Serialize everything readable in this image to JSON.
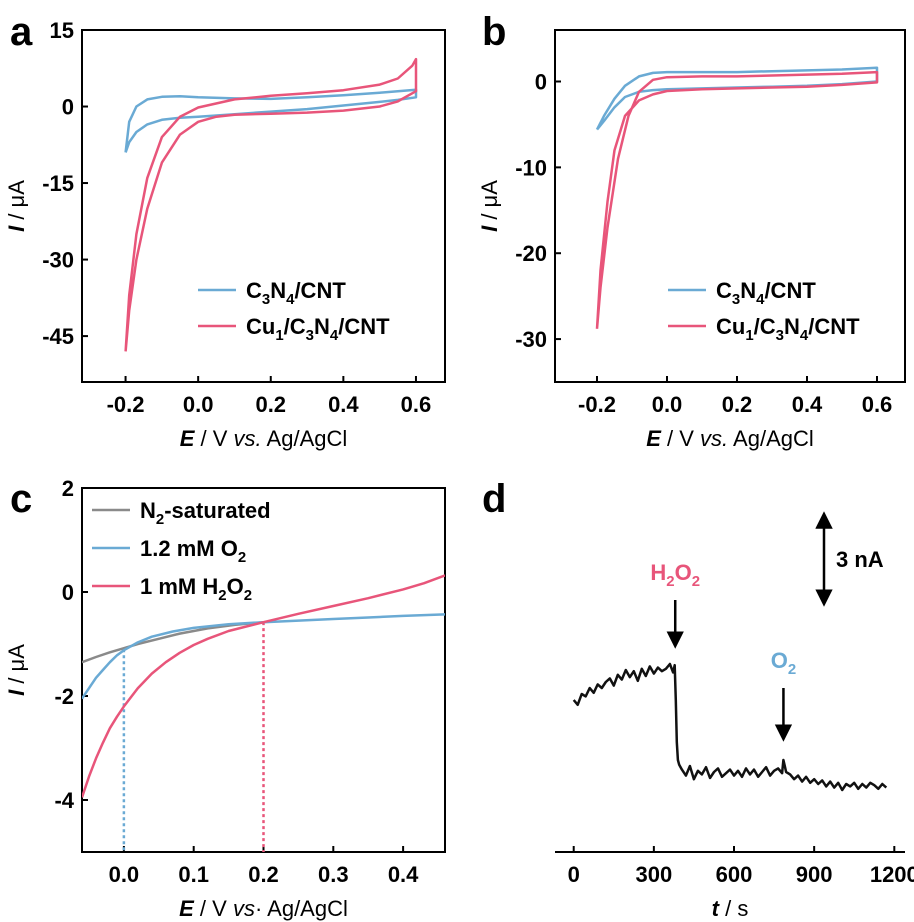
{
  "colors": {
    "blue": "#6aaad4",
    "pink": "#e8557a",
    "gray": "#8a8a8a",
    "black": "#111111",
    "axis": "#000000"
  },
  "panels": [
    {
      "letter": "a"
    },
    {
      "letter": "b"
    },
    {
      "letter": "c"
    },
    {
      "letter": "d"
    }
  ],
  "chart_data": [
    {
      "panel": "a",
      "type": "line",
      "xlabel": {
        "italic": "E",
        "sep": " / V ",
        "italic2": "vs.",
        "rest": " Ag/AgCl"
      },
      "ylabel": {
        "italic": "I",
        "rest": " / μA"
      },
      "xlim": [
        -0.32,
        0.68
      ],
      "ylim": [
        -54,
        15
      ],
      "xticks": [
        "-0.2",
        "0.0",
        "0.2",
        "0.4",
        "0.6"
      ],
      "xtick_values": [
        -0.2,
        0.0,
        0.2,
        0.4,
        0.6
      ],
      "yticks": [
        "15",
        "0",
        "-15",
        "-30",
        "-45"
      ],
      "ytick_values": [
        15,
        0,
        -15,
        -30,
        -45
      ],
      "legend": [
        {
          "label": "C3N4/CNT",
          "color_key": "blue"
        },
        {
          "label": "Cu1/C3N4/CNT",
          "color_key": "pink"
        }
      ],
      "series": [
        {
          "name": "C3N4/CNT",
          "color_key": "blue",
          "x": [
            -0.2,
            -0.19,
            -0.17,
            -0.14,
            -0.1,
            -0.05,
            0.0,
            0.1,
            0.2,
            0.3,
            0.4,
            0.5,
            0.55,
            0.6,
            0.6,
            0.55,
            0.5,
            0.4,
            0.3,
            0.2,
            0.1,
            0.0,
            -0.05,
            -0.1,
            -0.14,
            -0.17,
            -0.19,
            -0.2
          ],
          "y": [
            -9.0,
            -7.0,
            -5.0,
            -3.5,
            -2.6,
            -2.2,
            -2.0,
            -1.5,
            -1.0,
            -0.5,
            0.2,
            0.9,
            1.3,
            1.8,
            3.3,
            3.0,
            2.7,
            2.2,
            1.8,
            1.5,
            1.6,
            1.8,
            2.0,
            1.9,
            1.4,
            0.0,
            -3.0,
            -9.0
          ]
        },
        {
          "name": "Cu1/C3N4/CNT",
          "color_key": "pink",
          "x": [
            -0.2,
            -0.19,
            -0.17,
            -0.14,
            -0.1,
            -0.05,
            0.0,
            0.05,
            0.1,
            0.2,
            0.3,
            0.4,
            0.5,
            0.55,
            0.6,
            0.6,
            0.59,
            0.55,
            0.5,
            0.4,
            0.3,
            0.2,
            0.1,
            0.0,
            -0.05,
            -0.1,
            -0.14,
            -0.17,
            -0.19,
            -0.2
          ],
          "y": [
            -48.0,
            -40.0,
            -30.0,
            -20.0,
            -11.0,
            -5.5,
            -3.0,
            -2.0,
            -1.6,
            -1.4,
            -1.2,
            -0.8,
            0.0,
            1.0,
            3.0,
            9.3,
            8.0,
            5.5,
            4.3,
            3.2,
            2.6,
            2.1,
            1.4,
            -0.2,
            -2.0,
            -6.0,
            -14.0,
            -25.0,
            -37.0,
            -48.0
          ]
        }
      ]
    },
    {
      "panel": "b",
      "type": "line",
      "xlabel": {
        "italic": "E",
        "sep": " / V ",
        "italic2": "vs.",
        "rest": " Ag/AgCl"
      },
      "ylabel": {
        "italic": "I",
        "rest": " / μA"
      },
      "xlim": [
        -0.32,
        0.68
      ],
      "ylim": [
        -35,
        6
      ],
      "xticks": [
        "-0.2",
        "0.0",
        "0.2",
        "0.4",
        "0.6"
      ],
      "xtick_values": [
        -0.2,
        0.0,
        0.2,
        0.4,
        0.6
      ],
      "yticks": [
        "0",
        "-10",
        "-20",
        "-30"
      ],
      "ytick_values": [
        0,
        -10,
        -20,
        -30
      ],
      "legend": [
        {
          "label": "C3N4/CNT",
          "color_key": "blue"
        },
        {
          "label": "Cu1/C3N4/CNT",
          "color_key": "pink"
        }
      ],
      "series": [
        {
          "name": "C3N4/CNT",
          "color_key": "blue",
          "x": [
            -0.2,
            -0.18,
            -0.15,
            -0.12,
            -0.08,
            -0.04,
            0.0,
            0.1,
            0.2,
            0.3,
            0.4,
            0.5,
            0.6,
            0.6,
            0.5,
            0.4,
            0.3,
            0.2,
            0.1,
            0.0,
            -0.04,
            -0.08,
            -0.12,
            -0.15,
            -0.18,
            -0.2
          ],
          "y": [
            -5.6,
            -4.6,
            -3.0,
            -1.8,
            -1.2,
            -1.0,
            -0.9,
            -0.8,
            -0.7,
            -0.6,
            -0.5,
            -0.3,
            0.0,
            1.6,
            1.4,
            1.3,
            1.2,
            1.1,
            1.1,
            1.1,
            1.0,
            0.6,
            -0.5,
            -2.0,
            -4.0,
            -5.6
          ]
        },
        {
          "name": "Cu1/C3N4/CNT",
          "color_key": "pink",
          "x": [
            -0.2,
            -0.19,
            -0.17,
            -0.15,
            -0.12,
            -0.08,
            -0.04,
            0.0,
            0.1,
            0.2,
            0.3,
            0.4,
            0.5,
            0.6,
            0.6,
            0.5,
            0.4,
            0.3,
            0.2,
            0.1,
            0.0,
            -0.04,
            -0.08,
            -0.11,
            -0.14,
            -0.17,
            -0.19,
            -0.2
          ],
          "y": [
            -28.8,
            -22.0,
            -14.0,
            -8.0,
            -4.0,
            -2.2,
            -1.5,
            -1.1,
            -0.9,
            -0.8,
            -0.7,
            -0.6,
            -0.4,
            -0.1,
            1.1,
            0.9,
            0.8,
            0.7,
            0.6,
            0.6,
            0.5,
            0.2,
            -1.2,
            -4.0,
            -9.0,
            -17.0,
            -24.0,
            -28.8
          ]
        }
      ]
    },
    {
      "panel": "c",
      "type": "line",
      "xlabel": {
        "italic": "E",
        "sep": " / V ",
        "italic2": "vs",
        "rest": "· Ag/AgCl"
      },
      "ylabel": {
        "italic": "I",
        "rest": " / μA"
      },
      "xlim": [
        -0.06,
        0.46
      ],
      "ylim": [
        -5,
        2
      ],
      "xticks": [
        "0.0",
        "0.1",
        "0.2",
        "0.3",
        "0.4"
      ],
      "xtick_values": [
        0.0,
        0.1,
        0.2,
        0.3,
        0.4
      ],
      "yticks": [
        "2",
        "0",
        "-2",
        "-4"
      ],
      "ytick_values": [
        2,
        0,
        -2,
        -4
      ],
      "legend": [
        {
          "label": "N2-saturated",
          "color_key": "gray"
        },
        {
          "label": "1.2 mM O2",
          "color_key": "blue"
        },
        {
          "label": "1 mM H2O2",
          "color_key": "pink"
        }
      ],
      "series": [
        {
          "name": "N2-saturated",
          "color_key": "gray",
          "x": [
            -0.06,
            -0.04,
            -0.02,
            0.0,
            0.02,
            0.05,
            0.08,
            0.12,
            0.16,
            0.2
          ],
          "y": [
            -1.35,
            -1.25,
            -1.16,
            -1.08,
            -1.0,
            -0.9,
            -0.8,
            -0.7,
            -0.63,
            -0.58
          ]
        },
        {
          "name": "1.2 mM O2",
          "color_key": "blue",
          "x": [
            -0.06,
            -0.05,
            -0.04,
            -0.03,
            -0.02,
            -0.01,
            0.0,
            0.02,
            0.04,
            0.07,
            0.1,
            0.15,
            0.2,
            0.25,
            0.3,
            0.35,
            0.4,
            0.46
          ],
          "y": [
            -2.05,
            -1.85,
            -1.65,
            -1.5,
            -1.35,
            -1.22,
            -1.12,
            -0.97,
            -0.86,
            -0.76,
            -0.69,
            -0.62,
            -0.58,
            -0.55,
            -0.52,
            -0.49,
            -0.46,
            -0.43
          ]
        },
        {
          "name": "1 mM H2O2",
          "color_key": "pink",
          "x": [
            -0.06,
            -0.05,
            -0.04,
            -0.03,
            -0.02,
            -0.01,
            0.0,
            0.02,
            0.04,
            0.06,
            0.08,
            0.1,
            0.12,
            0.15,
            0.2,
            0.25,
            0.3,
            0.35,
            0.4,
            0.43,
            0.46
          ],
          "y": [
            -3.95,
            -3.55,
            -3.2,
            -2.9,
            -2.62,
            -2.4,
            -2.2,
            -1.85,
            -1.57,
            -1.35,
            -1.17,
            -1.02,
            -0.9,
            -0.75,
            -0.58,
            -0.42,
            -0.27,
            -0.12,
            0.05,
            0.17,
            0.32
          ]
        }
      ],
      "markers": [
        {
          "x": 0.0,
          "y": -1.1,
          "color_key": "blue"
        },
        {
          "x": 0.2,
          "y": -0.58,
          "color_key": "pink"
        }
      ]
    },
    {
      "panel": "d",
      "type": "line",
      "xlabel": {
        "italic": "t",
        "rest": " / s"
      },
      "xlim": [
        -70,
        1240
      ],
      "xticks": [
        "0",
        "300",
        "600",
        "900",
        "1200"
      ],
      "xtick_values": [
        0,
        300,
        600,
        900,
        1200
      ],
      "scale_bar": {
        "label": "3 nA"
      },
      "annotations": [
        {
          "label": "H2O2",
          "color_key": "pink",
          "x": 380
        },
        {
          "label": "O2",
          "color_key": "blue",
          "x": 785
        }
      ],
      "series": [
        {
          "name": "",
          "color_key": "black",
          "x": [
            0,
            15,
            30,
            45,
            60,
            75,
            90,
            105,
            120,
            135,
            150,
            165,
            180,
            195,
            210,
            225,
            240,
            255,
            270,
            285,
            300,
            315,
            330,
            345,
            360,
            372,
            378,
            382,
            386,
            390,
            395,
            405,
            420,
            435,
            450,
            465,
            480,
            495,
            510,
            525,
            540,
            555,
            570,
            585,
            600,
            615,
            630,
            645,
            660,
            675,
            690,
            705,
            720,
            735,
            750,
            765,
            780,
            785,
            790,
            795,
            810,
            825,
            840,
            855,
            870,
            885,
            900,
            915,
            930,
            945,
            960,
            975,
            990,
            1005,
            1020,
            1035,
            1050,
            1065,
            1080,
            1095,
            1110,
            1125,
            1140,
            1155,
            1170
          ],
          "y": [
            -0.0,
            -0.4,
            0.5,
            0.3,
            1.0,
            0.6,
            1.3,
            1.0,
            1.5,
            1.8,
            1.2,
            2.1,
            1.7,
            2.5,
            1.9,
            2.4,
            1.6,
            2.6,
            2.0,
            2.8,
            2.2,
            2.7,
            2.4,
            2.6,
            3.0,
            2.3,
            2.9,
            0.0,
            -3.5,
            -5.0,
            -5.4,
            -5.8,
            -6.3,
            -5.5,
            -6.6,
            -5.9,
            -6.2,
            -5.6,
            -6.5,
            -6.0,
            -5.7,
            -6.4,
            -6.1,
            -5.8,
            -6.3,
            -5.9,
            -6.4,
            -5.7,
            -6.2,
            -5.8,
            -6.4,
            -6.0,
            -5.6,
            -6.3,
            -5.9,
            -5.7,
            -6.1,
            -5.0,
            -5.5,
            -6.0,
            -6.2,
            -6.6,
            -6.3,
            -6.8,
            -6.4,
            -6.9,
            -6.6,
            -7.0,
            -6.7,
            -7.2,
            -6.8,
            -7.3,
            -6.9,
            -7.5,
            -7.0,
            -7.2,
            -6.9,
            -7.4,
            -7.0,
            -7.3,
            -6.9,
            -7.1,
            -7.4,
            -7.0,
            -7.3
          ]
        }
      ]
    }
  ]
}
